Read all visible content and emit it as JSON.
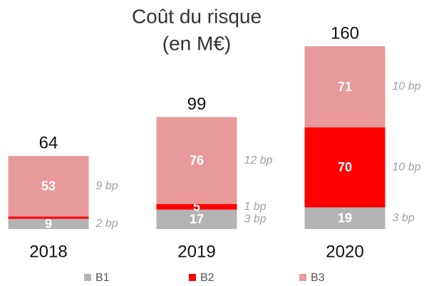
{
  "chart_data": {
    "type": "stacked_bar",
    "title": "Coût du risque",
    "subtitle": "(en M€)",
    "categories": [
      "2018",
      "2019",
      "2020"
    ],
    "totals": [
      64,
      99,
      160
    ],
    "series": [
      {
        "name": "B1",
        "color": "#b4b4b4",
        "values": [
          9,
          17,
          19
        ],
        "annotations": [
          "2 bp",
          "3 bp",
          "3 bp"
        ]
      },
      {
        "name": "B2",
        "color": "#ff0000",
        "values": [
          2,
          5,
          70
        ],
        "value_labels": [
          null,
          "5",
          "70"
        ],
        "annotations": [
          null,
          "1 bp",
          "10 bp"
        ]
      },
      {
        "name": "B3",
        "color": "#e89a9a",
        "values": [
          53,
          76,
          71
        ],
        "annotations": [
          "9 bp",
          "12 bp",
          "10 bp"
        ]
      }
    ],
    "ylim": [
      0,
      160
    ]
  }
}
